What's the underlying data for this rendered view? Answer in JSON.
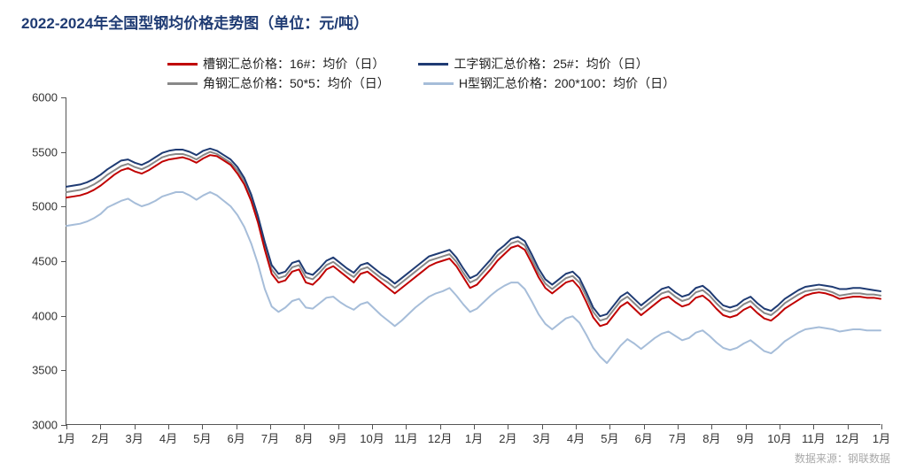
{
  "title": "2022-2024年全国型钢均价格走势图（单位：元/吨）",
  "source": "数据来源：钢联数据",
  "chart": {
    "type": "line",
    "background_color": "#ffffff",
    "axis_color": "#555555",
    "title_color": "#1f3b73",
    "title_fontsize": 17,
    "tick_fontsize": 13,
    "ylim": [
      3000,
      6000
    ],
    "ytick_step": 500,
    "yticks": [
      3000,
      3500,
      4000,
      4500,
      5000,
      5500,
      6000
    ],
    "x_labels": [
      "1月",
      "2月",
      "3月",
      "4月",
      "5月",
      "6月",
      "7月",
      "8月",
      "9月",
      "10月",
      "11月",
      "12月",
      "1月",
      "2月",
      "3月",
      "4月",
      "5月",
      "6月",
      "7月",
      "8月",
      "9月",
      "10月",
      "11月",
      "12月",
      "1月"
    ],
    "legend_position": "top-center",
    "line_width": 2,
    "series": [
      {
        "name": "槽钢汇总价格：16#：均价（日）",
        "color": "#c00000",
        "values": [
          5080,
          5090,
          5100,
          5120,
          5150,
          5190,
          5240,
          5290,
          5330,
          5350,
          5320,
          5300,
          5330,
          5370,
          5410,
          5430,
          5440,
          5450,
          5430,
          5400,
          5440,
          5470,
          5460,
          5420,
          5380,
          5300,
          5200,
          5050,
          4850,
          4600,
          4380,
          4300,
          4320,
          4400,
          4420,
          4300,
          4280,
          4340,
          4420,
          4450,
          4400,
          4350,
          4300,
          4380,
          4400,
          4350,
          4300,
          4250,
          4200,
          4250,
          4300,
          4350,
          4400,
          4450,
          4480,
          4500,
          4520,
          4450,
          4350,
          4250,
          4280,
          4350,
          4420,
          4500,
          4560,
          4620,
          4640,
          4600,
          4480,
          4350,
          4250,
          4200,
          4250,
          4300,
          4320,
          4250,
          4120,
          3980,
          3900,
          3920,
          4000,
          4080,
          4120,
          4060,
          4000,
          4050,
          4100,
          4150,
          4170,
          4120,
          4080,
          4100,
          4160,
          4180,
          4130,
          4060,
          4000,
          3980,
          4000,
          4050,
          4080,
          4020,
          3970,
          3950,
          4000,
          4060,
          4100,
          4140,
          4180,
          4200,
          4210,
          4200,
          4180,
          4150,
          4160,
          4170,
          4170,
          4160,
          4160,
          4150
        ]
      },
      {
        "name": "工字钢汇总价格：25#：均价（日）",
        "color": "#1f3b73",
        "values": [
          5180,
          5190,
          5200,
          5220,
          5250,
          5290,
          5340,
          5380,
          5420,
          5430,
          5400,
          5380,
          5410,
          5450,
          5490,
          5510,
          5520,
          5520,
          5500,
          5470,
          5510,
          5530,
          5510,
          5470,
          5430,
          5360,
          5260,
          5110,
          4910,
          4670,
          4460,
          4380,
          4400,
          4480,
          4500,
          4390,
          4370,
          4430,
          4500,
          4530,
          4480,
          4430,
          4390,
          4460,
          4480,
          4430,
          4380,
          4340,
          4290,
          4340,
          4390,
          4440,
          4490,
          4540,
          4560,
          4580,
          4600,
          4530,
          4430,
          4340,
          4370,
          4440,
          4510,
          4590,
          4640,
          4700,
          4720,
          4680,
          4560,
          4430,
          4330,
          4280,
          4330,
          4380,
          4400,
          4340,
          4210,
          4070,
          3990,
          4010,
          4090,
          4170,
          4210,
          4150,
          4090,
          4140,
          4190,
          4240,
          4260,
          4210,
          4170,
          4190,
          4250,
          4270,
          4220,
          4150,
          4090,
          4070,
          4090,
          4140,
          4170,
          4110,
          4060,
          4040,
          4090,
          4150,
          4190,
          4230,
          4260,
          4270,
          4280,
          4270,
          4260,
          4240,
          4240,
          4250,
          4250,
          4240,
          4230,
          4220
        ]
      },
      {
        "name": "角钢汇总价格：50*5：均价（日）",
        "color": "#888888",
        "values": [
          5130,
          5140,
          5150,
          5170,
          5200,
          5240,
          5290,
          5330,
          5370,
          5390,
          5360,
          5340,
          5370,
          5410,
          5450,
          5470,
          5480,
          5480,
          5460,
          5430,
          5470,
          5500,
          5480,
          5440,
          5400,
          5330,
          5230,
          5080,
          4880,
          4640,
          4420,
          4340,
          4360,
          4440,
          4460,
          4350,
          4330,
          4390,
          4460,
          4490,
          4440,
          4390,
          4350,
          4420,
          4440,
          4390,
          4340,
          4300,
          4250,
          4300,
          4350,
          4400,
          4450,
          4500,
          4520,
          4540,
          4560,
          4490,
          4390,
          4300,
          4330,
          4400,
          4470,
          4550,
          4600,
          4660,
          4680,
          4640,
          4520,
          4390,
          4290,
          4240,
          4290,
          4340,
          4360,
          4300,
          4170,
          4030,
          3950,
          3970,
          4050,
          4130,
          4170,
          4110,
          4050,
          4100,
          4150,
          4200,
          4220,
          4170,
          4130,
          4150,
          4210,
          4230,
          4180,
          4110,
          4050,
          4030,
          4050,
          4100,
          4130,
          4070,
          4020,
          4000,
          4050,
          4110,
          4150,
          4190,
          4220,
          4230,
          4240,
          4230,
          4210,
          4180,
          4190,
          4200,
          4200,
          4190,
          4190,
          4180
        ]
      },
      {
        "name": "H型钢汇总价格：200*100：均价（日）",
        "color": "#a6bdd9",
        "values": [
          4820,
          4830,
          4840,
          4860,
          4890,
          4930,
          4990,
          5020,
          5050,
          5070,
          5030,
          5000,
          5020,
          5050,
          5090,
          5110,
          5130,
          5130,
          5100,
          5060,
          5100,
          5130,
          5100,
          5050,
          5000,
          4920,
          4810,
          4660,
          4470,
          4240,
          4080,
          4030,
          4070,
          4130,
          4150,
          4070,
          4060,
          4110,
          4160,
          4170,
          4120,
          4080,
          4050,
          4100,
          4120,
          4060,
          4000,
          3950,
          3900,
          3950,
          4010,
          4070,
          4120,
          4170,
          4200,
          4220,
          4250,
          4180,
          4100,
          4030,
          4060,
          4120,
          4180,
          4230,
          4270,
          4300,
          4300,
          4240,
          4130,
          4010,
          3920,
          3870,
          3920,
          3970,
          3990,
          3930,
          3820,
          3700,
          3620,
          3560,
          3640,
          3720,
          3780,
          3740,
          3690,
          3740,
          3790,
          3830,
          3850,
          3810,
          3770,
          3790,
          3840,
          3860,
          3810,
          3750,
          3700,
          3680,
          3700,
          3740,
          3770,
          3720,
          3670,
          3650,
          3700,
          3760,
          3800,
          3840,
          3870,
          3880,
          3890,
          3880,
          3870,
          3850,
          3860,
          3870,
          3870,
          3860,
          3860,
          3860
        ]
      }
    ]
  }
}
